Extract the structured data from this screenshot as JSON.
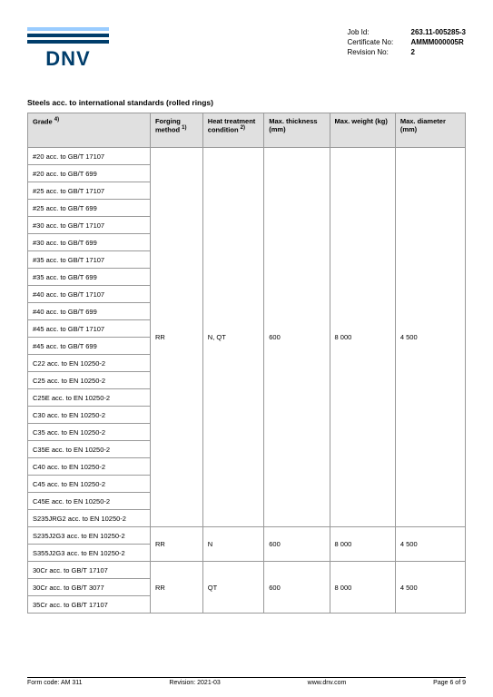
{
  "logo": {
    "text": "DNV",
    "bar_colors": [
      "#99ccff",
      "#003d6b",
      "#003d6b"
    ],
    "text_color": "#003d6b"
  },
  "meta": {
    "rows": [
      {
        "label": "Job Id:",
        "value": "263.11-005285-3"
      },
      {
        "label": "Certificate No:",
        "value": "AMMM000005R"
      },
      {
        "label": "Revision No:",
        "value": "2"
      }
    ]
  },
  "section_title": "Steels acc. to international standards (rolled rings)",
  "table": {
    "columns": [
      {
        "label": "Grade",
        "sup": "4)"
      },
      {
        "label": "Forging method",
        "sup": "1)"
      },
      {
        "label": "Heat treatment condition",
        "sup": "2)"
      },
      {
        "label": "Max. thickness (mm)",
        "sup": ""
      },
      {
        "label": "Max. weight (kg)",
        "sup": ""
      },
      {
        "label": "Max. diameter (mm)",
        "sup": ""
      }
    ],
    "groups": [
      {
        "grades": [
          "#20 acc. to GB/T 17107",
          "#20 acc. to GB/T 699",
          "#25 acc. to GB/T 17107",
          "#25 acc. to GB/T 699",
          "#30 acc. to GB/T 17107",
          "#30 acc. to GB/T 699",
          "#35 acc. to GB/T 17107",
          "#35 acc. to GB/T 699",
          "#40 acc. to GB/T 17107",
          "#40 acc. to GB/T 699",
          "#45 acc. to GB/T 17107",
          "#45 acc. to GB/T 699",
          "C22 acc. to EN 10250-2",
          "C25 acc. to EN 10250-2",
          "C25E acc. to EN 10250-2",
          "C30 acc. to EN 10250-2",
          "C35 acc. to EN 10250-2",
          "C35E acc. to EN 10250-2",
          "C40 acc. to EN 10250-2",
          "C45 acc. to EN 10250-2",
          "C45E acc. to EN 10250-2",
          "S235JRG2 acc. to EN 10250-2"
        ],
        "forging": "RR",
        "heat": "N, QT",
        "thickness": "600",
        "weight": "8 000",
        "diameter": "4 500"
      },
      {
        "grades": [
          "S235J2G3 acc. to EN 10250-2",
          "S355J2G3 acc. to EN 10250-2"
        ],
        "forging": "RR",
        "heat": "N",
        "thickness": "600",
        "weight": "8 000",
        "diameter": "4 500"
      },
      {
        "grades": [
          "30Cr acc. to GB/T 17107",
          "30Cr acc. to GB/T 3077",
          "35Cr acc. to GB/T 17107"
        ],
        "forging": "RR",
        "heat": "QT",
        "thickness": "600",
        "weight": "8 000",
        "diameter": "4 500"
      }
    ]
  },
  "footer": {
    "form": "Form code: AM 311",
    "revision": "Revision: 2021-03",
    "url": "www.dnv.com",
    "page": "Page 6 of 9"
  }
}
